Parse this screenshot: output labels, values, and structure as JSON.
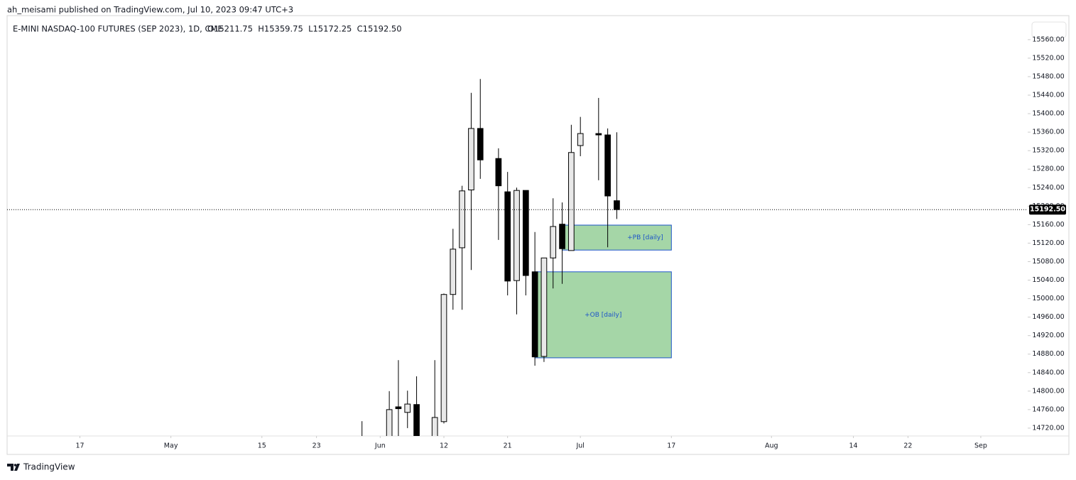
{
  "header": {
    "publisher": "ah_meisami published on TradingView.com, Jul 10, 2023 09:47 UTC+3"
  },
  "footer": {
    "brand": "TradingView"
  },
  "chart_data": {
    "type": "candlestick",
    "title": "E-MINI NASDAQ-100 FUTURES (SEP 2023), 1D, CME",
    "ohlc_legend": "O15211.75  H15359.75  L15172.25  C15192.50",
    "x": [
      "2023-05-30",
      "2023-06-02",
      "2023-06-05",
      "2023-06-06",
      "2023-06-07",
      "2023-06-09",
      "2023-06-12",
      "2023-06-13",
      "2023-06-14",
      "2023-06-15",
      "2023-06-16",
      "2023-06-20",
      "2023-06-21",
      "2023-06-22",
      "2023-06-23",
      "2023-06-26",
      "2023-06-27",
      "2023-06-28",
      "2023-06-29",
      "2023-06-30",
      "2023-07-03",
      "2023-07-05",
      "2023-07-06",
      "2023-07-07"
    ],
    "open": [
      14690,
      14690,
      14766,
      14754,
      14771,
      14700,
      14734,
      15009,
      15110,
      15235,
      15368,
      15303,
      15231,
      15039,
      15234,
      15058,
      14875,
      15088,
      15161,
      15104,
      15331,
      15357,
      15354,
      15211.75
    ],
    "high": [
      14735,
      14800,
      14867,
      14801,
      14832,
      14867,
      15011,
      15151,
      15244,
      15445,
      15475,
      15325,
      15274,
      15240,
      15234,
      15144,
      15088,
      15217,
      15208,
      15376,
      15393,
      15434,
      15368,
      15359.75
    ],
    "low": [
      14650,
      14680,
      14690,
      14720,
      14680,
      14690,
      14730,
      14976,
      14976,
      15062,
      15259,
      15127,
      15007,
      14966,
      15007,
      14855,
      14863,
      15022,
      15032,
      15104,
      15308,
      15256,
      15111,
      15172.25
    ],
    "close": [
      14670,
      14760,
      14762,
      14772,
      14700,
      14743,
      15009,
      15107,
      15233,
      15368,
      15300,
      15244,
      15038,
      15234,
      15050,
      14874,
      15088,
      15156,
      15108,
      15316,
      15357,
      15354,
      15222,
      15192.5
    ],
    "up_color": "#e8e8e8",
    "down_color": "#000000",
    "zones": [
      {
        "label": "+PB [daily]",
        "from": "2023-06-29",
        "to": "2023-07-17",
        "top": 15159,
        "bottom": 15105,
        "color": "#a5d6a7",
        "border": "#1e55c8"
      },
      {
        "label": "+OB [daily]",
        "from": "2023-06-26",
        "to": "2023-07-17",
        "top": 15058,
        "bottom": 14872,
        "color": "#a5d6a7",
        "border": "#1e55c8"
      }
    ],
    "last_price": {
      "value": 15192.5,
      "label": "15192.50"
    },
    "xlim": [
      "2023-04-05",
      "2023-09-08"
    ],
    "xticks": [
      {
        "value": "2023-04-17",
        "label": "17"
      },
      {
        "value": "2023-05-01",
        "label": "May"
      },
      {
        "value": "2023-05-15",
        "label": "15"
      },
      {
        "value": "2023-05-23",
        "label": "23"
      },
      {
        "value": "2023-06-01",
        "label": "Jun"
      },
      {
        "value": "2023-06-12",
        "label": "12"
      },
      {
        "value": "2023-06-21",
        "label": "21"
      },
      {
        "value": "2023-07-03",
        "label": "Jul"
      },
      {
        "value": "2023-07-17",
        "label": "17"
      },
      {
        "value": "2023-08-01",
        "label": "Aug"
      },
      {
        "value": "2023-08-14",
        "label": "14"
      },
      {
        "value": "2023-08-22",
        "label": "22"
      },
      {
        "value": "2023-09-01",
        "label": "Sep"
      }
    ],
    "ylim": [
      14703,
      15612
    ],
    "yticks": [
      {
        "value": 14720,
        "label": "14720.00"
      },
      {
        "value": 14760,
        "label": "14760.00"
      },
      {
        "value": 14800,
        "label": "14800.00"
      },
      {
        "value": 14840,
        "label": "14840.00"
      },
      {
        "value": 14880,
        "label": "14880.00"
      },
      {
        "value": 14920,
        "label": "14920.00"
      },
      {
        "value": 14960,
        "label": "14960.00"
      },
      {
        "value": 15000,
        "label": "15000.00"
      },
      {
        "value": 15040,
        "label": "15040.00"
      },
      {
        "value": 15080,
        "label": "15080.00"
      },
      {
        "value": 15120,
        "label": "15120.00"
      },
      {
        "value": 15160,
        "label": "15160.00"
      },
      {
        "value": 15200,
        "label": "15200.00"
      },
      {
        "value": 15240,
        "label": "15240.00"
      },
      {
        "value": 15280,
        "label": "15280.00"
      },
      {
        "value": 15320,
        "label": "15320.00"
      },
      {
        "value": 15360,
        "label": "15360.00"
      },
      {
        "value": 15400,
        "label": "15400.00"
      },
      {
        "value": 15440,
        "label": "15440.00"
      },
      {
        "value": 15480,
        "label": "15480.00"
      },
      {
        "value": 15520,
        "label": "15520.00"
      },
      {
        "value": 15560,
        "label": "15560.00"
      }
    ],
    "grid": false
  }
}
